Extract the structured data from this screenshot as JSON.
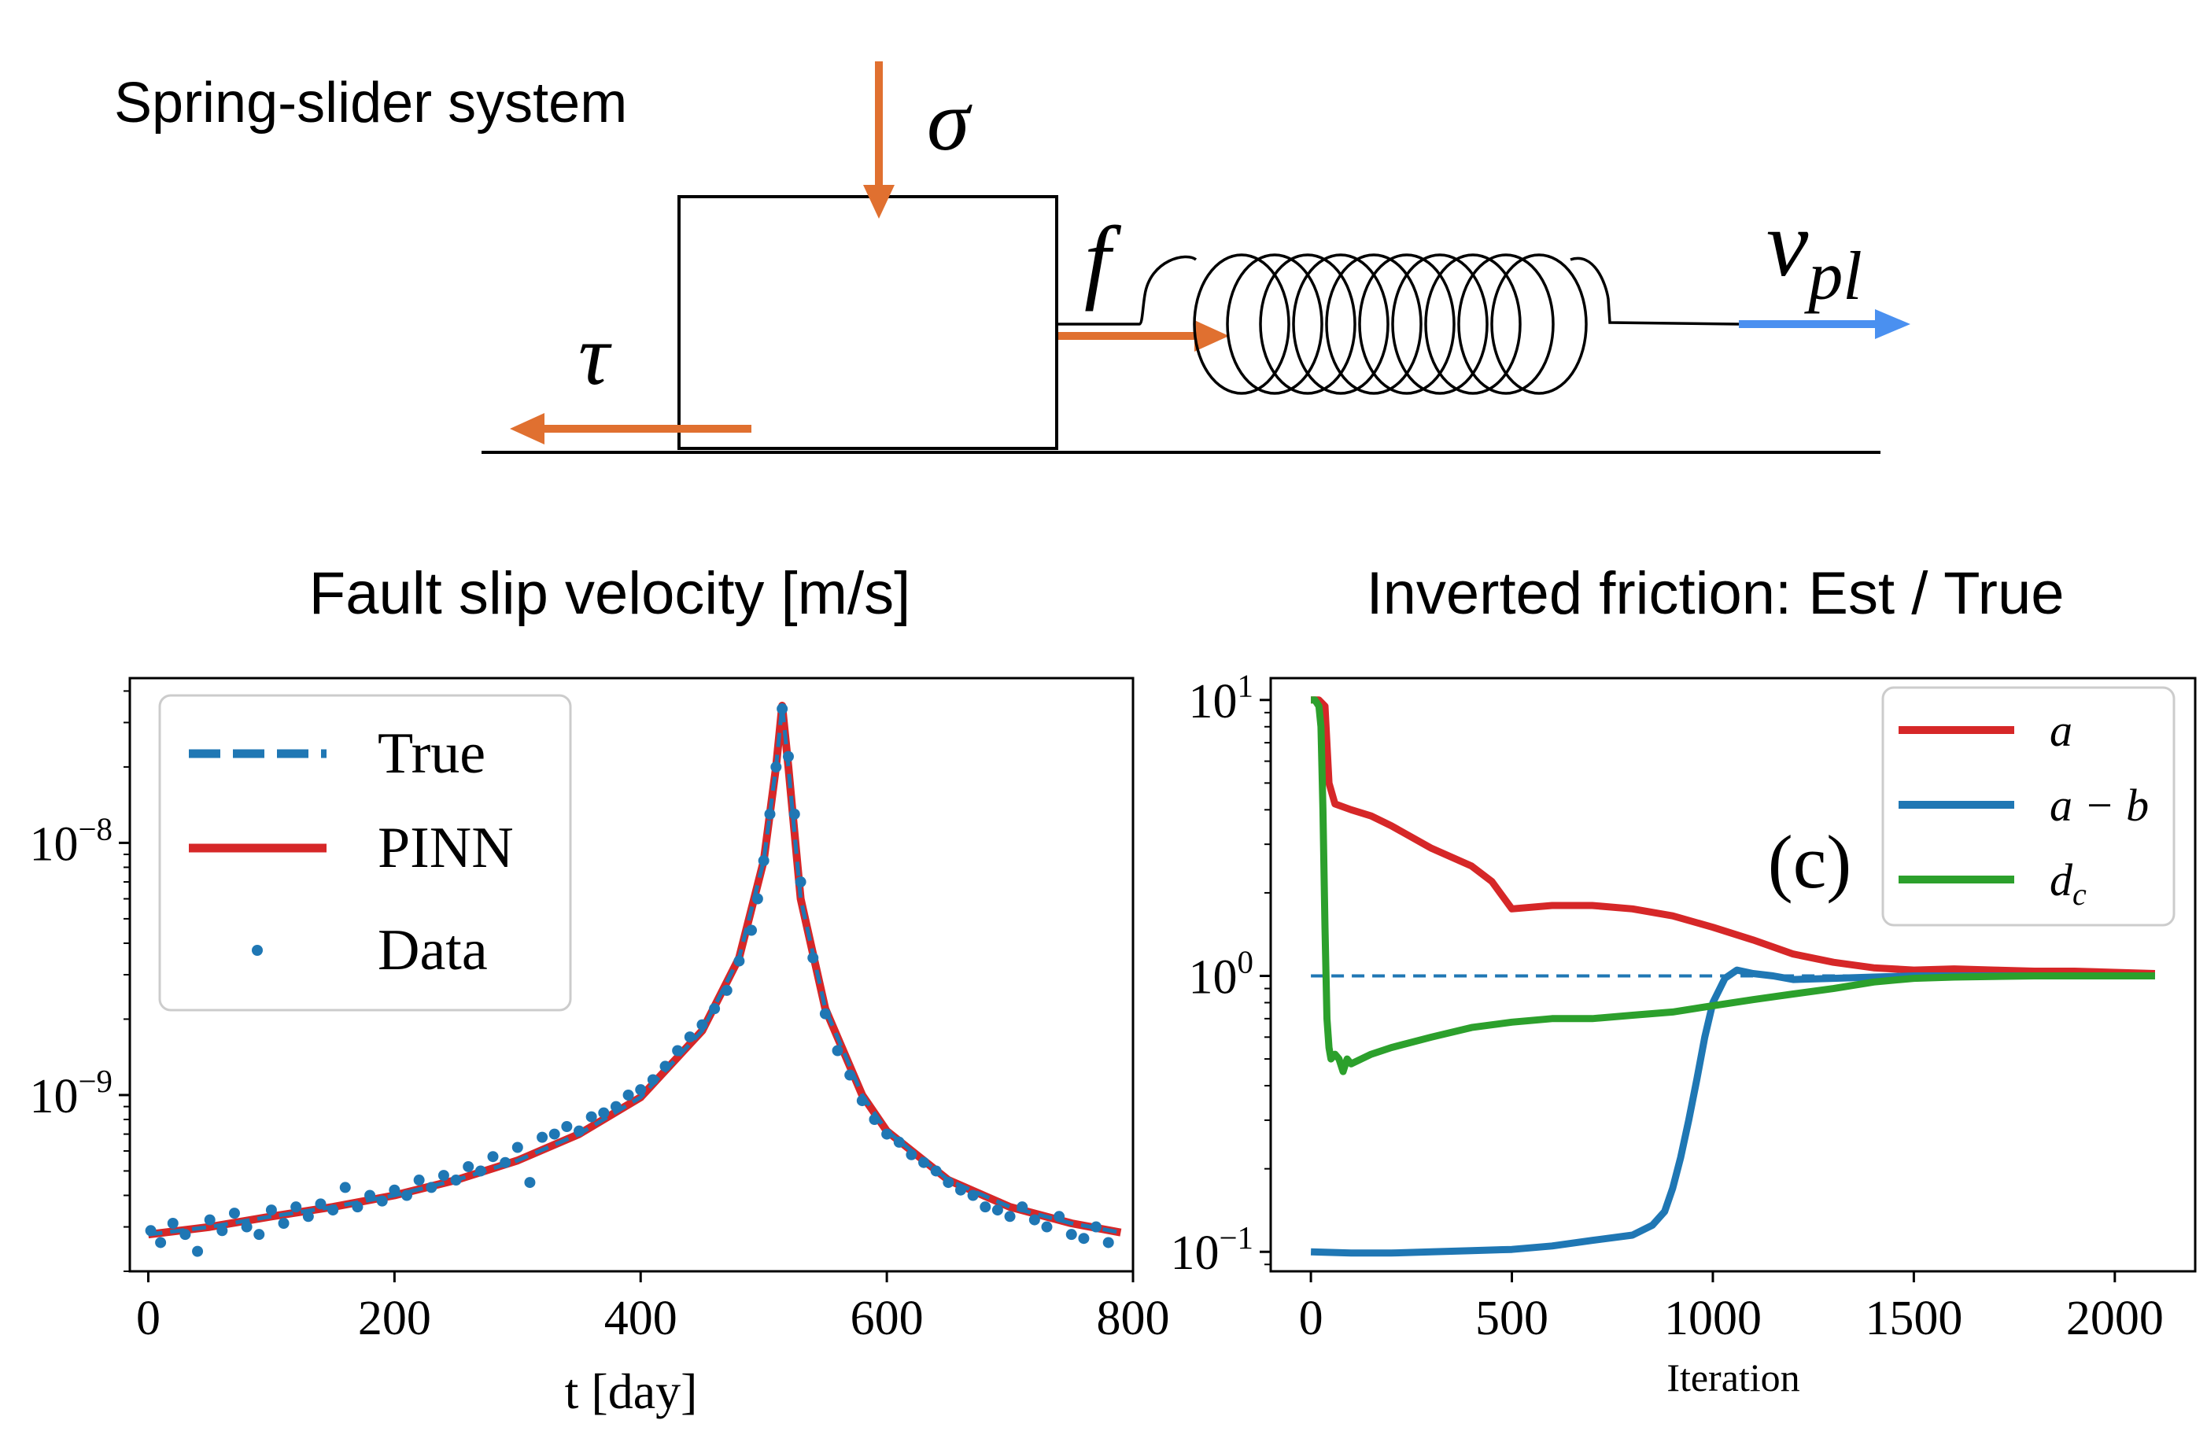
{
  "diagram": {
    "title": "Spring-slider system",
    "symbols": {
      "sigma": "σ",
      "tau": "τ",
      "f": "f",
      "v": "v",
      "v_sub": "pl"
    },
    "colors": {
      "force_arrow": "#E07030",
      "velocity_arrow": "#4A90F0",
      "line": "#000000"
    }
  },
  "chart_data": [
    {
      "type": "line",
      "title": "Fault slip velocity [m/s]",
      "xlabel": "t [day]",
      "ylabel": "",
      "yscale": "log",
      "xlim": [
        -15,
        800
      ],
      "ylim": [
        2e-10,
        4.5e-08
      ],
      "xticks": [
        0,
        200,
        400,
        600,
        800
      ],
      "xtick_labels": [
        "0",
        "200",
        "400",
        "600",
        "800"
      ],
      "yticks": [
        1e-09,
        1e-08
      ],
      "ytick_labels": [
        {
          "base": "10",
          "exp": "−9"
        },
        {
          "base": "10",
          "exp": "−8"
        }
      ],
      "legend": {
        "position": "top-left",
        "entries": [
          {
            "label": "True",
            "style": "dashed",
            "color": "#1F77B4"
          },
          {
            "label": "PINN",
            "style": "solid",
            "color": "#D62728"
          },
          {
            "label": "Data",
            "style": "marker",
            "color": "#1F77B4"
          }
        ]
      },
      "series": [
        {
          "name": "True",
          "color": "#1F77B4",
          "x": [
            0,
            50,
            100,
            150,
            200,
            250,
            300,
            350,
            400,
            450,
            480,
            500,
            510,
            515,
            520,
            530,
            550,
            580,
            600,
            650,
            700,
            750,
            790
          ],
          "y": [
            2.8e-10,
            3e-10,
            3.3e-10,
            3.6e-10,
            4e-10,
            4.6e-10,
            5.5e-10,
            7e-10,
            9.8e-10,
            1.8e-09,
            3.5e-09,
            8.5e-09,
            2e-08,
            3.5e-08,
            2e-08,
            6e-09,
            2.2e-09,
            1e-09,
            7.2e-10,
            4.6e-10,
            3.6e-10,
            3.1e-10,
            2.85e-10
          ]
        },
        {
          "name": "PINN",
          "color": "#D62728",
          "x": [
            0,
            50,
            100,
            150,
            200,
            250,
            300,
            350,
            400,
            450,
            480,
            500,
            510,
            515,
            520,
            530,
            550,
            580,
            600,
            650,
            700,
            750,
            790
          ],
          "y": [
            2.8e-10,
            3e-10,
            3.3e-10,
            3.6e-10,
            4e-10,
            4.6e-10,
            5.5e-10,
            7e-10,
            9.8e-10,
            1.8e-09,
            3.5e-09,
            8.5e-09,
            2e-08,
            3.5e-08,
            2e-08,
            6e-09,
            2.2e-09,
            1e-09,
            7.2e-10,
            4.6e-10,
            3.6e-10,
            3.1e-10,
            2.85e-10
          ]
        },
        {
          "name": "Data",
          "color": "#1F77B4",
          "x": [
            2,
            10,
            20,
            30,
            40,
            50,
            60,
            70,
            80,
            90,
            100,
            110,
            120,
            130,
            140,
            150,
            160,
            170,
            180,
            190,
            200,
            210,
            220,
            230,
            240,
            250,
            260,
            270,
            280,
            290,
            300,
            310,
            320,
            330,
            340,
            350,
            360,
            370,
            380,
            390,
            400,
            410,
            420,
            430,
            440,
            450,
            460,
            470,
            480,
            490,
            495,
            500,
            505,
            510,
            515,
            520,
            525,
            530,
            540,
            550,
            560,
            570,
            580,
            590,
            600,
            610,
            620,
            630,
            640,
            650,
            660,
            670,
            680,
            690,
            700,
            710,
            720,
            730,
            740,
            750,
            760,
            770,
            780
          ],
          "y": [
            2.9e-10,
            2.6e-10,
            3.1e-10,
            2.8e-10,
            2.4e-10,
            3.2e-10,
            2.9e-10,
            3.4e-10,
            3e-10,
            2.8e-10,
            3.5e-10,
            3.1e-10,
            3.6e-10,
            3.3e-10,
            3.7e-10,
            3.5e-10,
            4.3e-10,
            3.6e-10,
            4e-10,
            3.8e-10,
            4.2e-10,
            4e-10,
            4.6e-10,
            4.3e-10,
            4.8e-10,
            4.6e-10,
            5.2e-10,
            5e-10,
            5.7e-10,
            5.4e-10,
            6.2e-10,
            4.5e-10,
            6.8e-10,
            7e-10,
            7.5e-10,
            7.2e-10,
            8.2e-10,
            8.5e-10,
            9e-10,
            1e-09,
            1.05e-09,
            1.15e-09,
            1.3e-09,
            1.5e-09,
            1.7e-09,
            1.9e-09,
            2.2e-09,
            2.6e-09,
            3.4e-09,
            4.5e-09,
            6e-09,
            8.5e-09,
            1.3e-08,
            2e-08,
            3.4e-08,
            2.2e-08,
            1.3e-08,
            7e-09,
            3.5e-09,
            2.1e-09,
            1.5e-09,
            1.2e-09,
            9.5e-10,
            8e-10,
            7e-10,
            6.5e-10,
            5.8e-10,
            5.4e-10,
            5e-10,
            4.5e-10,
            4.2e-10,
            4e-10,
            3.6e-10,
            3.5e-10,
            3.3e-10,
            3.6e-10,
            3.2e-10,
            3e-10,
            3.3e-10,
            2.8e-10,
            2.7e-10,
            3e-10,
            2.6e-10
          ]
        }
      ]
    },
    {
      "type": "line",
      "title": "Inverted friction: Est / True",
      "xlabel": "Iteration",
      "ylabel": "",
      "yscale": "log",
      "annotation": "(c)",
      "xlim": [
        -100,
        2200
      ],
      "ylim": [
        0.085,
        12
      ],
      "xticks": [
        0,
        500,
        1000,
        1500,
        2000
      ],
      "xtick_labels": [
        "0",
        "500",
        "1000",
        "1500",
        "2000"
      ],
      "yticks": [
        0.1,
        1,
        10
      ],
      "ytick_labels": [
        {
          "base": "10",
          "exp": "−1"
        },
        {
          "base": "10",
          "exp": "0"
        },
        {
          "base": "10",
          "exp": "1"
        }
      ],
      "reference_line": {
        "y": 1,
        "style": "dashed",
        "color": "#1F77B4"
      },
      "legend": {
        "position": "top-right",
        "entries": [
          {
            "label": "a",
            "color": "#D62728"
          },
          {
            "label": "a − b",
            "color": "#1F77B4"
          },
          {
            "label": "d",
            "sub": "c",
            "color": "#2CA02C"
          }
        ]
      },
      "series": [
        {
          "name": "a",
          "color": "#D62728",
          "x": [
            0,
            20,
            35,
            45,
            60,
            100,
            150,
            200,
            300,
            400,
            450,
            500,
            600,
            700,
            800,
            900,
            1000,
            1100,
            1200,
            1300,
            1400,
            1500,
            1600,
            1700,
            1800,
            1900,
            2000,
            2100
          ],
          "y": [
            10,
            10,
            9.5,
            5.0,
            4.2,
            4.0,
            3.8,
            3.5,
            2.9,
            2.5,
            2.2,
            1.75,
            1.8,
            1.8,
            1.75,
            1.65,
            1.5,
            1.35,
            1.2,
            1.12,
            1.07,
            1.05,
            1.06,
            1.05,
            1.04,
            1.04,
            1.03,
            1.02
          ]
        },
        {
          "name": "a − b",
          "color": "#1F77B4",
          "x": [
            0,
            100,
            200,
            300,
            400,
            500,
            600,
            700,
            800,
            850,
            880,
            900,
            920,
            940,
            960,
            980,
            1000,
            1030,
            1060,
            1100,
            1150,
            1200,
            1300,
            1400,
            1500,
            1600,
            1800,
            2000,
            2100
          ],
          "y": [
            0.1,
            0.099,
            0.099,
            0.1,
            0.101,
            0.102,
            0.105,
            0.11,
            0.115,
            0.125,
            0.14,
            0.17,
            0.22,
            0.3,
            0.42,
            0.6,
            0.8,
            0.98,
            1.05,
            1.02,
            1.0,
            0.97,
            0.98,
            0.99,
            1.0,
            1.0,
            1.0,
            1.0,
            1.0
          ]
        },
        {
          "name": "dc",
          "color": "#2CA02C",
          "x": [
            0,
            10,
            20,
            25,
            30,
            35,
            40,
            45,
            50,
            60,
            70,
            80,
            90,
            100,
            150,
            200,
            300,
            400,
            500,
            600,
            700,
            800,
            900,
            1000,
            1100,
            1200,
            1300,
            1400,
            1500,
            1600,
            1800,
            2000,
            2100
          ],
          "y": [
            10,
            10,
            9.5,
            8.0,
            4.0,
            1.5,
            0.7,
            0.55,
            0.5,
            0.52,
            0.5,
            0.45,
            0.5,
            0.48,
            0.52,
            0.55,
            0.6,
            0.65,
            0.68,
            0.7,
            0.7,
            0.72,
            0.74,
            0.78,
            0.82,
            0.86,
            0.9,
            0.95,
            0.98,
            0.99,
            1.0,
            1.0,
            1.0
          ]
        }
      ]
    }
  ]
}
